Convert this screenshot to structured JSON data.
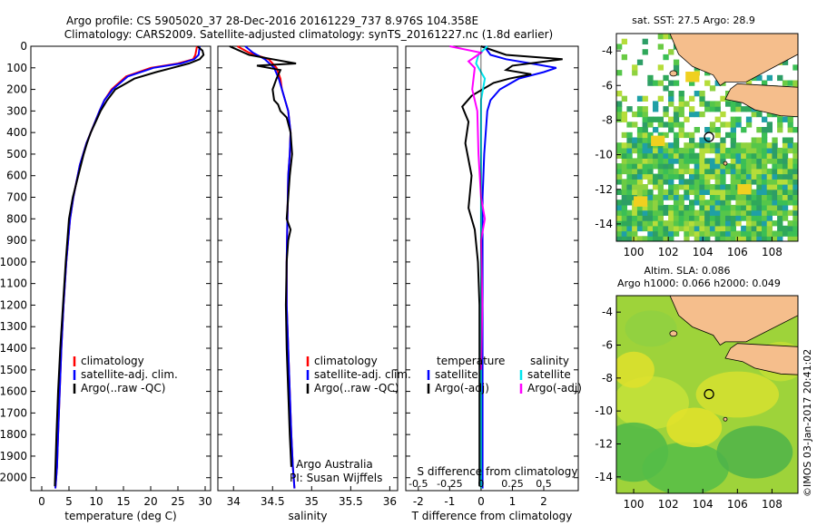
{
  "header": {
    "line1": "Argo profile: CS 5905020_37 28-Dec-2016 20161229_737 8.976S 104.358E",
    "line2": "Climatology: CARS2009. Satellite-adjusted climatology: synTS_20161227.nc (1.8d earlier)"
  },
  "colors": {
    "climatology": "#ff0000",
    "satellite": "#0000ff",
    "argo": "#000000",
    "temp_adj": "#000000",
    "sal_sat": "#00e5ee",
    "sal_adj": "#ff00ff",
    "land": "#f5be8c"
  },
  "depth_ticks": [
    "0",
    "100",
    "200",
    "300",
    "400",
    "500",
    "600",
    "700",
    "800",
    "900",
    "1000",
    "1100",
    "1200",
    "1300",
    "1400",
    "1500",
    "1600",
    "1700",
    "1800",
    "1900",
    "2000"
  ],
  "chart_data": [
    {
      "type": "line",
      "name": "temperature-panel",
      "xlabel": "temperature (deg C)",
      "xlim": [
        -2,
        31
      ],
      "ylim": [
        2060,
        0
      ],
      "xticks": [
        0,
        5,
        10,
        15,
        20,
        25,
        30
      ],
      "xtick_labels": [
        "0",
        "5",
        "10",
        "15",
        "20",
        "25",
        "30"
      ],
      "legend": [
        "climatology",
        "satellite-adj. clim.",
        "Argo(..raw -QC)"
      ],
      "series": [
        {
          "name": "climatology",
          "color": "#ff0000",
          "x": [
            28.5,
            28.2,
            27.8,
            25,
            20,
            15.5,
            12.8,
            11.5,
            10.6,
            9.8,
            9.0,
            8.2,
            7.6,
            7.0,
            6.6,
            6.2,
            5.8,
            5.2,
            4.5,
            4.0,
            3.6,
            3.3,
            3.0,
            2.8,
            2.5
          ],
          "y": [
            0,
            40,
            60,
            80,
            100,
            140,
            200,
            250,
            300,
            350,
            400,
            450,
            500,
            550,
            600,
            650,
            700,
            800,
            1000,
            1200,
            1400,
            1600,
            1800,
            1950,
            2050
          ]
        },
        {
          "name": "satellite-adj. clim.",
          "color": "#0000ff",
          "x": [
            29.0,
            28.8,
            28.0,
            25.5,
            20.5,
            15.8,
            13.0,
            11.5,
            10.6,
            9.8,
            9.0,
            8.2,
            7.6,
            7.0,
            6.6,
            6.2,
            5.8,
            5.2,
            4.5,
            4.0,
            3.6,
            3.3,
            3.0,
            2.8,
            2.5
          ],
          "y": [
            0,
            40,
            60,
            80,
            100,
            140,
            200,
            250,
            300,
            350,
            400,
            450,
            500,
            550,
            600,
            650,
            700,
            800,
            1000,
            1200,
            1400,
            1600,
            1800,
            1950,
            2050
          ]
        },
        {
          "name": "Argo(..raw -QC)",
          "color": "#000000",
          "x": [
            28.6,
            29.5,
            29.7,
            29.0,
            27.0,
            24.0,
            21.0,
            17.0,
            13.5,
            12.0,
            10.8,
            9.9,
            9.0,
            8.3,
            7.7,
            7.2,
            6.7,
            6.2,
            5.7,
            5.0,
            4.4,
            3.9,
            3.4,
            3.0,
            2.7,
            2.4
          ],
          "y": [
            0,
            20,
            40,
            60,
            80,
            100,
            120,
            150,
            200,
            250,
            300,
            350,
            400,
            450,
            500,
            550,
            600,
            650,
            700,
            800,
            1000,
            1200,
            1400,
            1600,
            1800,
            2040
          ]
        }
      ]
    },
    {
      "type": "line",
      "name": "salinity-panel",
      "xlabel": "salinity",
      "xlim": [
        33.8,
        36.1
      ],
      "ylim": [
        2060,
        0
      ],
      "xticks": [
        34,
        34.5,
        35,
        35.5,
        36
      ],
      "xtick_labels": [
        "34",
        "34.5",
        "35",
        "35.5",
        "36"
      ],
      "legend": [
        "climatology",
        "satellite-adj. clim.",
        "Argo(..raw -QC)"
      ],
      "annotation": [
        "Argo Australia",
        "PI: Susan Wijffels"
      ],
      "series": [
        {
          "name": "climatology",
          "color": "#ff0000",
          "x": [
            34.05,
            34.2,
            34.45,
            34.55,
            34.6,
            34.62,
            34.7,
            34.73,
            34.72,
            34.7,
            34.69,
            34.68,
            34.68,
            34.7,
            34.72,
            34.74,
            34.76,
            34.78
          ],
          "y": [
            0,
            30,
            60,
            100,
            150,
            200,
            300,
            400,
            500,
            600,
            800,
            1000,
            1200,
            1400,
            1600,
            1800,
            1950,
            2050
          ]
        },
        {
          "name": "satellite-adj. clim.",
          "color": "#0000ff",
          "x": [
            34.15,
            34.25,
            34.4,
            34.52,
            34.58,
            34.62,
            34.7,
            34.73,
            34.72,
            34.7,
            34.69,
            34.68,
            34.68,
            34.7,
            34.72,
            34.74,
            34.76,
            34.78
          ],
          "y": [
            0,
            30,
            60,
            100,
            150,
            200,
            300,
            400,
            500,
            600,
            800,
            1000,
            1200,
            1400,
            1600,
            1800,
            1950,
            2050
          ]
        },
        {
          "name": "Argo(..raw -QC)",
          "color": "#000000",
          "x": [
            33.95,
            34.2,
            34.5,
            34.8,
            34.3,
            34.6,
            34.55,
            34.5,
            34.52,
            34.57,
            34.6,
            34.68,
            34.73,
            34.75,
            34.72,
            34.7,
            34.68,
            34.73,
            34.7,
            34.68,
            34.67,
            34.68,
            34.7,
            34.72,
            34.74
          ],
          "y": [
            0,
            40,
            60,
            80,
            90,
            110,
            150,
            200,
            250,
            270,
            300,
            330,
            400,
            500,
            600,
            700,
            800,
            850,
            900,
            1000,
            1200,
            1400,
            1600,
            1800,
            1950
          ]
        }
      ]
    },
    {
      "type": "line",
      "name": "difference-panel",
      "xlabel": "T difference from climatology",
      "xlabel_top": "S difference from climatology",
      "xlim": [
        -2.4,
        3.1
      ],
      "ylim": [
        2060,
        0
      ],
      "xticks": [
        -2,
        -1,
        0,
        1,
        2
      ],
      "xtick_labels": [
        "-2",
        "-1",
        "0",
        "1",
        "2"
      ],
      "xticks_top": [
        -0.5,
        -0.25,
        0,
        0.25,
        0.5
      ],
      "xtick_labels_top": [
        "-0.5",
        "-0.25",
        "0",
        "0.25",
        "0.5"
      ],
      "s_scale": 4,
      "legend": {
        "left_title": "temperature",
        "left": [
          "satellite",
          "Argo(-adj)"
        ],
        "right_title": "salinity",
        "right": [
          "satellite",
          "Argo(-adj)"
        ]
      },
      "series": [
        {
          "name": "temperature satellite",
          "color": "#0000ff",
          "quantity": "T",
          "x": [
            0.1,
            0.3,
            0.8,
            1.6,
            2.4,
            2.0,
            1.2,
            0.6,
            0.3,
            0.2,
            0.15,
            0.1,
            0.05,
            0.05,
            0.05,
            0.05,
            0.05
          ],
          "y": [
            0,
            40,
            60,
            80,
            100,
            120,
            150,
            200,
            250,
            300,
            400,
            500,
            700,
            1000,
            1400,
            1800,
            2050
          ]
        },
        {
          "name": "temperature Argo(-adj)",
          "color": "#000000",
          "quantity": "T",
          "x": [
            0.0,
            0.8,
            2.6,
            1.0,
            0.8,
            1.6,
            0.9,
            0.4,
            -0.3,
            -0.6,
            -0.4,
            -0.5,
            -0.3,
            -0.4,
            -0.2,
            -0.1,
            -0.05,
            -0.05,
            -0.05,
            -0.05
          ],
          "y": [
            0,
            40,
            60,
            90,
            110,
            130,
            150,
            170,
            230,
            280,
            350,
            450,
            600,
            750,
            850,
            1000,
            1200,
            1500,
            1800,
            2040
          ]
        },
        {
          "name": "salinity satellite",
          "color": "#00e5ee",
          "quantity": "S",
          "x": [
            0.05,
            -0.02,
            -0.04,
            0.03,
            0.0,
            0.0,
            0.0,
            0.0,
            0.0
          ],
          "y": [
            0,
            40,
            80,
            150,
            250,
            500,
            1000,
            1500,
            2050
          ]
        },
        {
          "name": "salinity Argo(-adj)",
          "color": "#ff00ff",
          "quantity": "S",
          "x": [
            -0.25,
            0.0,
            -0.1,
            -0.05,
            -0.07,
            -0.03,
            -0.02,
            0.0,
            0.03,
            0.0,
            0.01,
            0.0
          ],
          "y": [
            0,
            30,
            70,
            100,
            200,
            300,
            500,
            700,
            800,
            900,
            1200,
            1500
          ]
        }
      ]
    },
    {
      "type": "heatmap",
      "name": "sst-map",
      "title": "sat. SST: 27.5 Argo: 28.9",
      "xlim": [
        99,
        109.5
      ],
      "ylim": [
        -15,
        -3
      ],
      "xticks": [
        100,
        102,
        104,
        106,
        108
      ],
      "yticks": [
        -4,
        -6,
        -8,
        -10,
        -12,
        -14
      ],
      "xtick_labels": [
        "100",
        "102",
        "104",
        "106",
        "108"
      ],
      "ytick_labels": [
        "-4",
        "-6",
        "-8",
        "-10",
        "-12",
        "-14"
      ],
      "marker": {
        "lon": 104.358,
        "lat": -8.976
      }
    },
    {
      "type": "heatmap",
      "name": "sla-map",
      "title": "Altim. SLA: 0.086",
      "subtitle": "Argo h1000: 0.066 h2000: 0.049",
      "xlim": [
        99,
        109.5
      ],
      "ylim": [
        -15,
        -3
      ],
      "xticks": [
        100,
        102,
        104,
        106,
        108
      ],
      "yticks": [
        -4,
        -6,
        -8,
        -10,
        -12,
        -14
      ],
      "xtick_labels": [
        "100",
        "102",
        "104",
        "106",
        "108"
      ],
      "ytick_labels": [
        "-4",
        "-6",
        "-8",
        "-10",
        "-12",
        "-14"
      ],
      "marker": {
        "lon": 104.358,
        "lat": -8.976
      }
    }
  ],
  "footer": {
    "stamp": "©IMOS 03-Jan-2017 20:41:02"
  }
}
